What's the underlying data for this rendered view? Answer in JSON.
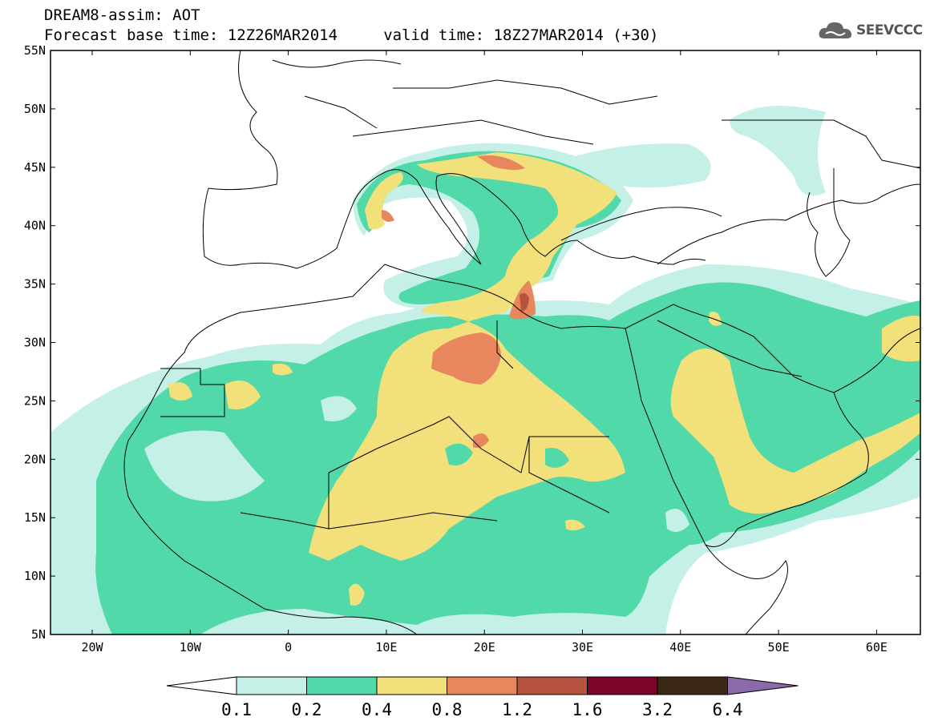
{
  "header": {
    "title_line1": "DREAM8-assim: AOT",
    "title_line2": "Forecast base time: 12Z26MAR2014     valid time: 18Z27MAR2014 (+30)"
  },
  "logo": {
    "text": "SEEVCCC",
    "icon": "cloud-icon"
  },
  "map": {
    "lat_labels": [
      "55N",
      "50N",
      "45N",
      "40N",
      "35N",
      "30N",
      "25N",
      "20N",
      "15N",
      "10N",
      "5N"
    ],
    "lon_labels": [
      "20W",
      "10W",
      "0",
      "10E",
      "20E",
      "30E",
      "40E",
      "50E",
      "60E"
    ]
  },
  "colorbar": {
    "labels": [
      "0.1",
      "0.2",
      "0.4",
      "0.8",
      "1.2",
      "1.6",
      "3.2",
      "6.4"
    ],
    "colors": [
      "#ffffff",
      "#c4f0e8",
      "#52d9aa",
      "#f2e07a",
      "#e8865e",
      "#b5533f",
      "#7a0528",
      "#3a2814",
      "#8a6aa8"
    ]
  }
}
